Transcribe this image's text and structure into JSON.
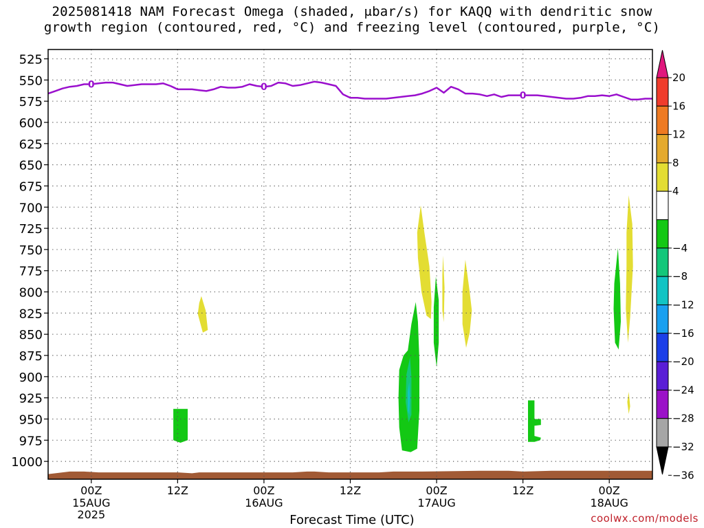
{
  "header": {
    "title_line1": "2025081418 NAM Forecast Omega (shaded, μbar/s) for KAQQ with dendritic snow",
    "title_line2": "growth region (contoured, red, °C) and freezing level (contoured, purple, °C)"
  },
  "footer": {
    "xlabel": "Forecast Time (UTC)",
    "credit": "coolwx.com/models"
  },
  "chart_data": {
    "type": "time-height cross section",
    "x_ticks": [
      {
        "h": 6,
        "label": "00Z",
        "sub": [
          "15AUG",
          "2025"
        ]
      },
      {
        "h": 18,
        "label": "12Z",
        "sub": []
      },
      {
        "h": 30,
        "label": "00Z",
        "sub": [
          "16AUG"
        ]
      },
      {
        "h": 42,
        "label": "12Z",
        "sub": []
      },
      {
        "h": 54,
        "label": "00Z",
        "sub": [
          "17AUG"
        ]
      },
      {
        "h": 66,
        "label": "12Z",
        "sub": []
      },
      {
        "h": 78,
        "label": "00Z",
        "sub": [
          "18AUG"
        ]
      }
    ],
    "x_range_hours": [
      0,
      84
    ],
    "y_axis": {
      "label_values": [
        525,
        550,
        575,
        600,
        625,
        650,
        675,
        700,
        725,
        750,
        775,
        800,
        825,
        850,
        875,
        900,
        925,
        950,
        975,
        1000
      ]
    },
    "colorbar": {
      "ticks": [
        "20",
        "16",
        "12",
        "8",
        "4",
        "−4",
        "−8",
        "−12",
        "−16",
        "−20",
        "−24",
        "−28",
        "−32",
        "−36"
      ],
      "bands": [
        {
          "from": 20,
          "to": 24,
          "color": "#e0177d"
        },
        {
          "from": 16,
          "to": 20,
          "color": "#f03c2c"
        },
        {
          "from": 12,
          "to": 16,
          "color": "#ee7a22"
        },
        {
          "from": 8,
          "to": 12,
          "color": "#e4aa2e"
        },
        {
          "from": 4,
          "to": 8,
          "color": "#e3dd33"
        },
        {
          "from": -4,
          "to": 4,
          "color": "#ffffff"
        },
        {
          "from": -8,
          "to": -4,
          "color": "#13c814"
        },
        {
          "from": -12,
          "to": -8,
          "color": "#14c77a"
        },
        {
          "from": -16,
          "to": -12,
          "color": "#12c4c4"
        },
        {
          "from": -20,
          "to": -16,
          "color": "#1aa0f0"
        },
        {
          "from": -24,
          "to": -20,
          "color": "#1c3fe8"
        },
        {
          "from": -28,
          "to": -24,
          "color": "#5a1ed6"
        },
        {
          "from": -32,
          "to": -28,
          "color": "#9b12c8"
        },
        {
          "from": -36,
          "to": -32,
          "color": "#a6a6a6"
        },
        {
          "from": -40,
          "to": -36,
          "color": "#000000"
        }
      ]
    },
    "freezing_level": {
      "color": "#9a0fcd",
      "label": "0",
      "label_hours": [
        6,
        30,
        66
      ],
      "points": [
        [
          0,
          566
        ],
        [
          1,
          563
        ],
        [
          2,
          560
        ],
        [
          3,
          558
        ],
        [
          4,
          557
        ],
        [
          5,
          555
        ],
        [
          6,
          555
        ],
        [
          7,
          554
        ],
        [
          8,
          553
        ],
        [
          9,
          553
        ],
        [
          10,
          555
        ],
        [
          11,
          557
        ],
        [
          12,
          556
        ],
        [
          13,
          555
        ],
        [
          14,
          555
        ],
        [
          15,
          555
        ],
        [
          16,
          554
        ],
        [
          17,
          557
        ],
        [
          18,
          561
        ],
        [
          19,
          561
        ],
        [
          20,
          561
        ],
        [
          21,
          562
        ],
        [
          22,
          563
        ],
        [
          23,
          561
        ],
        [
          24,
          558
        ],
        [
          25,
          559
        ],
        [
          26,
          559
        ],
        [
          27,
          558
        ],
        [
          28,
          555
        ],
        [
          29,
          557
        ],
        [
          30,
          558
        ],
        [
          31,
          557
        ],
        [
          32,
          553
        ],
        [
          33,
          554
        ],
        [
          34,
          557
        ],
        [
          35,
          556
        ],
        [
          36,
          554
        ],
        [
          37,
          552
        ],
        [
          38,
          553
        ],
        [
          39,
          555
        ],
        [
          40,
          557
        ],
        [
          41,
          567
        ],
        [
          42,
          571
        ],
        [
          43,
          571
        ],
        [
          44,
          572
        ],
        [
          45,
          572
        ],
        [
          46,
          572
        ],
        [
          47,
          572
        ],
        [
          48,
          571
        ],
        [
          49,
          570
        ],
        [
          50,
          569
        ],
        [
          51,
          568
        ],
        [
          52,
          566
        ],
        [
          53,
          563
        ],
        [
          54,
          559
        ],
        [
          55,
          565
        ],
        [
          56,
          558
        ],
        [
          57,
          561
        ],
        [
          58,
          566
        ],
        [
          59,
          566
        ],
        [
          60,
          567
        ],
        [
          61,
          569
        ],
        [
          62,
          567
        ],
        [
          63,
          570
        ],
        [
          64,
          568
        ],
        [
          65,
          568
        ],
        [
          66,
          568
        ],
        [
          67,
          568
        ],
        [
          68,
          568
        ],
        [
          69,
          569
        ],
        [
          70,
          570
        ],
        [
          71,
          571
        ],
        [
          72,
          572
        ],
        [
          73,
          572
        ],
        [
          74,
          571
        ],
        [
          75,
          569
        ],
        [
          76,
          569
        ],
        [
          77,
          568
        ],
        [
          78,
          569
        ],
        [
          79,
          567
        ],
        [
          80,
          570
        ],
        [
          81,
          573
        ],
        [
          82,
          573
        ],
        [
          83,
          572
        ],
        [
          84,
          572
        ]
      ]
    },
    "terrain": {
      "color": "#a15a35",
      "surface": [
        [
          0,
          1015
        ],
        [
          1,
          1014
        ],
        [
          2,
          1013
        ],
        [
          3,
          1012
        ],
        [
          5,
          1012
        ],
        [
          7,
          1013
        ],
        [
          9,
          1013
        ],
        [
          14,
          1013
        ],
        [
          18,
          1013
        ],
        [
          20,
          1014
        ],
        [
          21,
          1013
        ],
        [
          34,
          1013
        ],
        [
          36,
          1012
        ],
        [
          37,
          1012
        ],
        [
          39,
          1013
        ],
        [
          46,
          1013
        ],
        [
          48,
          1012
        ],
        [
          50,
          1012
        ],
        [
          52,
          1012
        ],
        [
          60,
          1011
        ],
        [
          64,
          1011
        ],
        [
          66,
          1012
        ],
        [
          70,
          1011
        ],
        [
          72,
          1011
        ],
        [
          80,
          1011
        ],
        [
          84,
          1011
        ]
      ]
    },
    "omega_areas": [
      {
        "value": 6,
        "color": "#e3dd33",
        "points": [
          [
            21.3,
            805
          ],
          [
            21.9,
            822
          ],
          [
            22.2,
            845
          ],
          [
            21.5,
            848
          ],
          [
            20.8,
            826
          ],
          [
            21.0,
            813
          ]
        ]
      },
      {
        "value": 6,
        "color": "#e3dd33",
        "points": [
          [
            51.8,
            698
          ],
          [
            52.3,
            730
          ],
          [
            53.0,
            770
          ],
          [
            53.3,
            812
          ],
          [
            53.2,
            832
          ],
          [
            52.6,
            828
          ],
          [
            51.9,
            800
          ],
          [
            51.4,
            760
          ],
          [
            51.3,
            730
          ]
        ]
      },
      {
        "value": 6,
        "color": "#e3dd33",
        "points": [
          [
            54.9,
            757
          ],
          [
            55.1,
            795
          ],
          [
            55.0,
            836
          ],
          [
            54.8,
            822
          ],
          [
            54.8,
            780
          ]
        ]
      },
      {
        "value": 6,
        "color": "#e3dd33",
        "points": [
          [
            58.0,
            762
          ],
          [
            58.6,
            800
          ],
          [
            58.9,
            822
          ],
          [
            58.6,
            848
          ],
          [
            58.1,
            866
          ],
          [
            57.6,
            838
          ],
          [
            57.6,
            800
          ]
        ]
      },
      {
        "value": 6,
        "color": "#e3dd33",
        "points": [
          [
            80.7,
            686
          ],
          [
            81.2,
            720
          ],
          [
            81.3,
            770
          ],
          [
            80.9,
            830
          ],
          [
            80.6,
            860
          ],
          [
            80.3,
            820
          ],
          [
            80.4,
            770
          ],
          [
            80.4,
            730
          ]
        ]
      },
      {
        "value": 6,
        "color": "#e3dd33",
        "points": [
          [
            80.7,
            918
          ],
          [
            80.9,
            935
          ],
          [
            80.7,
            944
          ],
          [
            80.5,
            930
          ]
        ]
      },
      {
        "value": -6,
        "color": "#13c814",
        "points": [
          [
            17.4,
            938
          ],
          [
            19.4,
            938
          ],
          [
            19.4,
            975
          ],
          [
            18.4,
            978
          ],
          [
            17.4,
            975
          ]
        ]
      },
      {
        "value": -6,
        "color": "#13c814",
        "points": [
          [
            51.1,
            812
          ],
          [
            51.4,
            835
          ],
          [
            51.6,
            880
          ],
          [
            51.6,
            940
          ],
          [
            51.3,
            985
          ],
          [
            50.4,
            989
          ],
          [
            49.2,
            987
          ],
          [
            48.8,
            960
          ],
          [
            48.7,
            925
          ],
          [
            48.8,
            892
          ],
          [
            49.4,
            875
          ],
          [
            50.0,
            869
          ],
          [
            50.5,
            838
          ]
        ]
      },
      {
        "value": -10,
        "color": "#14c77a",
        "points": [
          [
            50.3,
            877
          ],
          [
            50.5,
            900
          ],
          [
            50.5,
            945
          ],
          [
            50.1,
            954
          ],
          [
            49.7,
            930
          ],
          [
            49.8,
            898
          ]
        ]
      },
      {
        "value": -14,
        "color": "#12c4c4",
        "points": [
          [
            50.2,
            906
          ],
          [
            50.3,
            925
          ],
          [
            50.2,
            945
          ],
          [
            50.0,
            940
          ],
          [
            50.0,
            918
          ]
        ]
      },
      {
        "value": -6,
        "color": "#13c814",
        "points": [
          [
            53.9,
            782
          ],
          [
            54.3,
            810
          ],
          [
            54.3,
            860
          ],
          [
            54.0,
            889
          ],
          [
            53.6,
            860
          ],
          [
            53.6,
            818
          ]
        ]
      },
      {
        "value": -6,
        "color": "#13c814",
        "points": [
          [
            79.2,
            748
          ],
          [
            79.5,
            790
          ],
          [
            79.6,
            835
          ],
          [
            79.3,
            868
          ],
          [
            78.8,
            860
          ],
          [
            78.6,
            820
          ],
          [
            78.7,
            790
          ]
        ]
      },
      {
        "value": -6,
        "color": "#13c814",
        "points": [
          [
            66.7,
            928
          ],
          [
            67.6,
            928
          ],
          [
            67.6,
            950
          ],
          [
            68.5,
            950
          ],
          [
            68.5,
            957
          ],
          [
            67.6,
            958
          ],
          [
            67.6,
            970
          ],
          [
            68.5,
            972
          ],
          [
            68.4,
            975
          ],
          [
            67.6,
            977
          ],
          [
            66.7,
            977
          ]
        ]
      }
    ]
  }
}
